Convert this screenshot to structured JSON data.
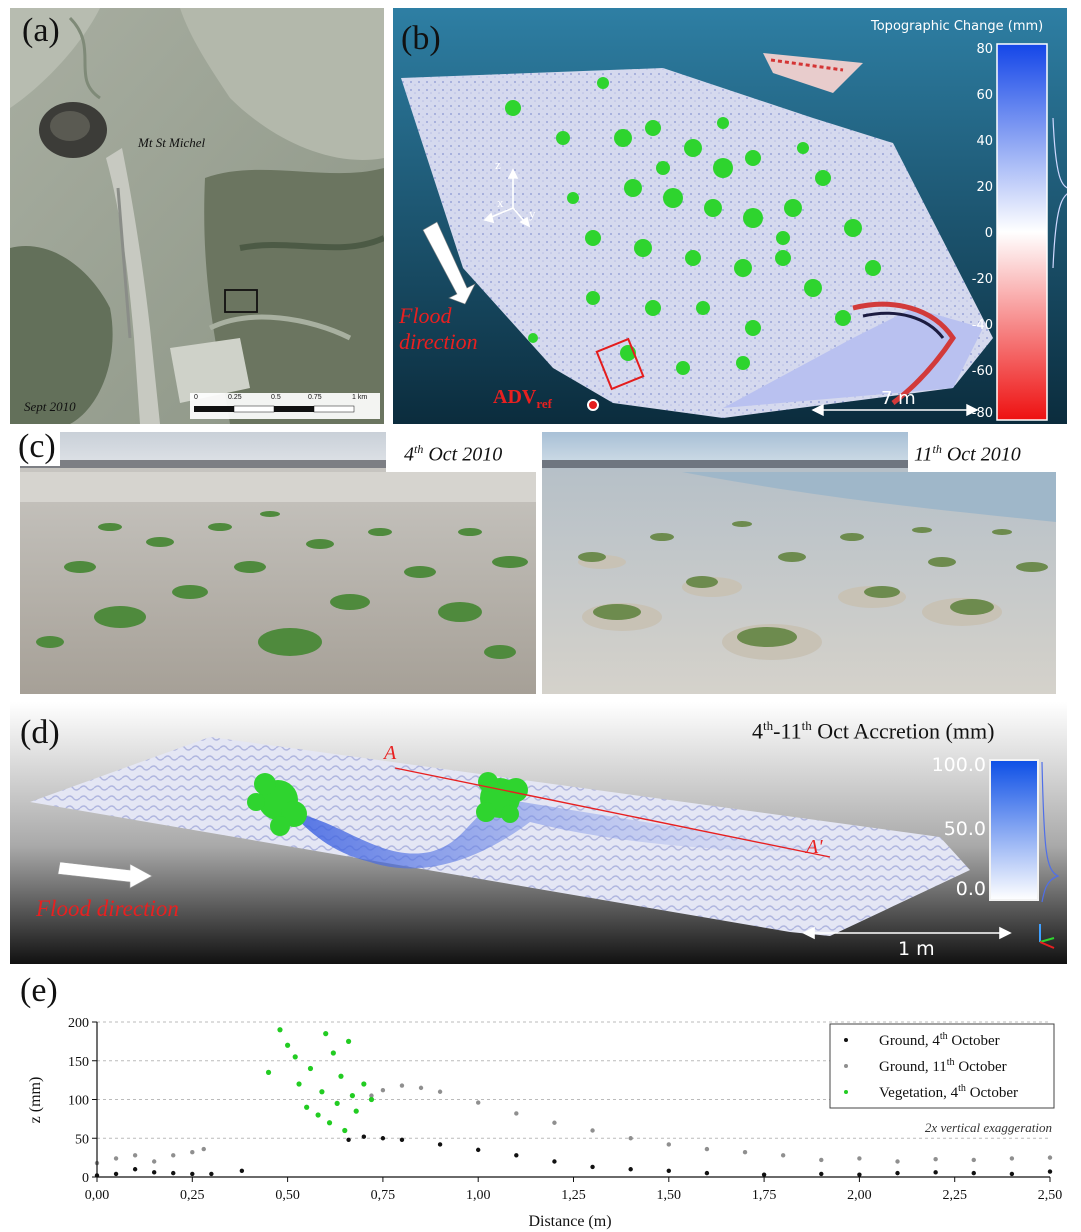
{
  "panel_a": {
    "label": "(a)",
    "place": "Mt St Michel",
    "date": "Sept 2010",
    "scale_ticks": [
      "0",
      "0.25",
      "0.5",
      "0.75",
      "1 km"
    ]
  },
  "panel_b": {
    "label": "(b)",
    "colorbar_title": "Topographic Change (mm)",
    "colorbar_ticks": [
      "80",
      "60",
      "40",
      "20",
      "0",
      "-20",
      "-40",
      "-60",
      "-80"
    ],
    "axes": {
      "z": "z",
      "x": "x",
      "y": "y"
    },
    "flood_line1": "Flood",
    "flood_line2": "direction",
    "adv_main": "ADV",
    "adv_sub": "ref",
    "scalebar": "7 m"
  },
  "panel_c": {
    "label": "(c)",
    "photo1_day": "4",
    "photo1_sup": "th",
    "photo1_rest": " Oct 2010",
    "photo2_day": "11",
    "photo2_sup": "th",
    "photo2_rest": " Oct 2010"
  },
  "panel_d": {
    "label": "(d)",
    "title_a": "4",
    "title_sup1": "th",
    "title_b": "-11",
    "title_sup2": "th",
    "title_c": " Oct Accretion (mm)",
    "colorbar_ticks": [
      "100.0",
      "50.0",
      "0.0"
    ],
    "section_a": "A",
    "section_b": "A'",
    "flood": "Flood direction",
    "scalebar": "1 m"
  },
  "panel_e": {
    "label": "(e)",
    "annotation": "2x vertical exaggeration",
    "chart_data": {
      "type": "scatter",
      "xlabel": "Distance (m)",
      "ylabel": "z (mm)",
      "xlim": [
        0,
        2.5
      ],
      "ylim": [
        0,
        200
      ],
      "xticks": [
        "0,00",
        "0,25",
        "0,50",
        "0,75",
        "1,00",
        "1,25",
        "1,50",
        "1,75",
        "2,00",
        "2,25",
        "2,50"
      ],
      "yticks": [
        "0",
        "50",
        "100",
        "150",
        "200"
      ],
      "grid": "horizontal dashed at 50, 100, 150",
      "legend_position": "top-right",
      "series": [
        {
          "name": "Ground, 4th October",
          "legend_main": "Ground, 4",
          "legend_sup": "th",
          "legend_rest": " October",
          "color": "#111111",
          "x": [
            0.0,
            0.05,
            0.1,
            0.15,
            0.2,
            0.25,
            0.3,
            0.38,
            0.66,
            0.7,
            0.75,
            0.8,
            0.9,
            1.0,
            1.1,
            1.2,
            1.3,
            1.4,
            1.5,
            1.6,
            1.75,
            1.9,
            2.0,
            2.1,
            2.2,
            2.3,
            2.4,
            2.5
          ],
          "y": [
            2,
            4,
            10,
            6,
            5,
            4,
            4,
            8,
            48,
            52,
            50,
            48,
            42,
            35,
            28,
            20,
            13,
            10,
            8,
            5,
            3,
            4,
            3,
            5,
            6,
            5,
            4,
            7
          ]
        },
        {
          "name": "Ground, 11th October",
          "legend_main": "Ground, 11",
          "legend_sup": "th",
          "legend_rest": " October",
          "color": "#8f8f8f",
          "x": [
            0.0,
            0.05,
            0.1,
            0.15,
            0.2,
            0.25,
            0.28,
            0.72,
            0.75,
            0.8,
            0.85,
            0.9,
            1.0,
            1.1,
            1.2,
            1.3,
            1.4,
            1.5,
            1.6,
            1.7,
            1.8,
            1.9,
            2.0,
            2.1,
            2.2,
            2.3,
            2.4,
            2.5
          ],
          "y": [
            18,
            24,
            28,
            20,
            28,
            32,
            36,
            105,
            112,
            118,
            115,
            110,
            96,
            82,
            70,
            60,
            50,
            42,
            36,
            32,
            28,
            22,
            24,
            20,
            23,
            22,
            24,
            25
          ]
        },
        {
          "name": "Vegetation, 4th October",
          "legend_main": "Vegetation, 4",
          "legend_sup": "th",
          "legend_rest": " October",
          "color": "#22cc22",
          "x": [
            0.45,
            0.48,
            0.5,
            0.52,
            0.53,
            0.55,
            0.56,
            0.58,
            0.59,
            0.6,
            0.61,
            0.62,
            0.63,
            0.64,
            0.65,
            0.66,
            0.67,
            0.68,
            0.7,
            0.72
          ],
          "y": [
            135,
            190,
            170,
            155,
            120,
            90,
            140,
            80,
            110,
            185,
            70,
            160,
            95,
            130,
            60,
            175,
            105,
            85,
            120,
            100
          ]
        }
      ]
    }
  }
}
